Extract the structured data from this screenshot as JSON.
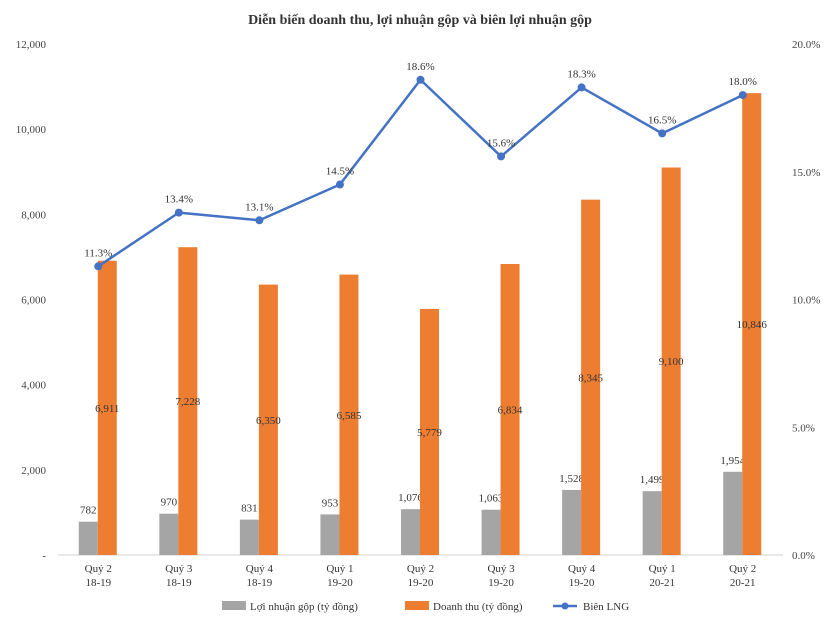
{
  "chart_data": {
    "type": "bar",
    "title": "Diễn biến doanh thu, lợi nhuận gộp và biên lợi nhuận gộp",
    "categories": [
      [
        "Quý 2",
        "18-19"
      ],
      [
        "Quý 3",
        "18-19"
      ],
      [
        "Quý 4",
        "18-19"
      ],
      [
        "Quý 1",
        "19-20"
      ],
      [
        "Quý 2",
        "19-20"
      ],
      [
        "Quý 3",
        "19-20"
      ],
      [
        "Quý 4",
        "19-20"
      ],
      [
        "Quý 1",
        "20-21"
      ],
      [
        "Quý 2",
        "20-21"
      ]
    ],
    "series": [
      {
        "name": "Lợi nhuận gộp (tỷ đồng)",
        "type": "bar",
        "axis": "left",
        "color": "#a5a5a5",
        "values": [
          782,
          970,
          831,
          953,
          1076,
          1063,
          1528,
          1499,
          1954
        ],
        "labels": [
          "782",
          "970",
          "831",
          "953",
          "1,076",
          "1,063",
          "1,528",
          "1,499",
          "1,954"
        ]
      },
      {
        "name": "Doanh thu (tỷ đồng)",
        "type": "bar",
        "axis": "left",
        "color": "#ed7d31",
        "values": [
          6911,
          7228,
          6350,
          6585,
          5779,
          6834,
          8345,
          9100,
          10846
        ],
        "labels": [
          "6,911",
          "7,228",
          "6,350",
          "6,585",
          "5,779",
          "6,834",
          "8,345",
          "9,100",
          "10,846"
        ]
      },
      {
        "name": "Biên LNG",
        "type": "line",
        "axis": "right",
        "color": "#4472c4",
        "values": [
          11.3,
          13.4,
          13.1,
          14.5,
          18.6,
          15.6,
          18.3,
          16.5,
          18.0
        ],
        "labels": [
          "11.3%",
          "13.4%",
          "13.1%",
          "14.5%",
          "18.6%",
          "15.6%",
          "18.3%",
          "16.5%",
          "18.0%"
        ]
      }
    ],
    "y_left": {
      "lim": [
        0,
        12000
      ],
      "ticks": [
        0,
        2000,
        4000,
        6000,
        8000,
        10000,
        12000
      ],
      "tick_labels": [
        "-",
        "2,000",
        "4,000",
        "6,000",
        "8,000",
        "10,000",
        "12,000"
      ]
    },
    "y_right": {
      "lim": [
        0,
        20
      ],
      "ticks": [
        0,
        5,
        10,
        15,
        20
      ],
      "tick_labels": [
        "0.0%",
        "5.0%",
        "10.0%",
        "15.0%",
        "20.0%"
      ]
    },
    "grid": false,
    "legend": "bottom"
  }
}
